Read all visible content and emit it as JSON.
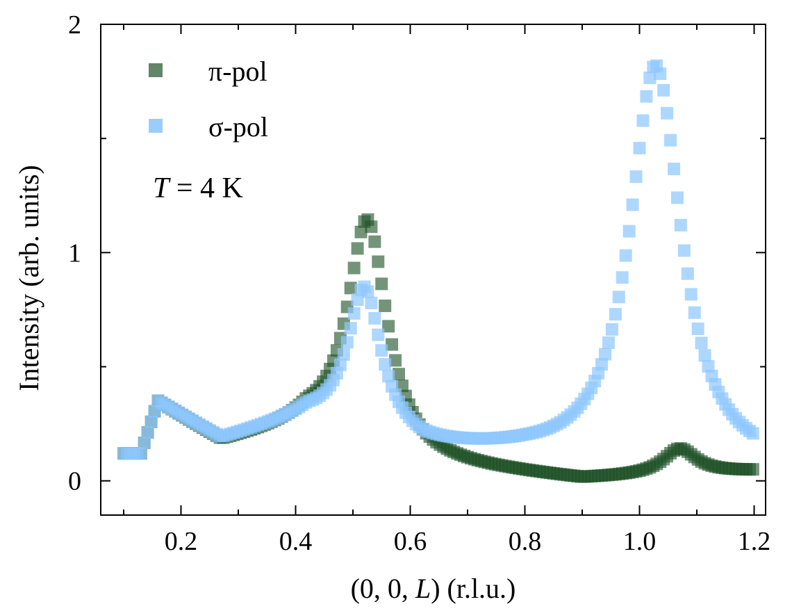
{
  "chart_data": {
    "type": "scatter",
    "xlabel_prefix": "(0, 0, ",
    "xlabel_var": "L",
    "xlabel_suffix": ") (r.l.u.)",
    "ylabel": "Intensity (arb. units)",
    "xlim": [
      0.06,
      1.22
    ],
    "ylim": [
      -0.15,
      2.0
    ],
    "x_ticks": [
      0.2,
      0.4,
      0.6,
      0.8,
      1.0,
      1.2
    ],
    "x_tick_labels": [
      "0.2",
      "0.4",
      "0.6",
      "0.8",
      "1.0",
      "1.2"
    ],
    "x_minor_ticks": [
      0.1,
      0.3,
      0.5,
      0.7,
      0.9,
      1.1
    ],
    "y_ticks": [
      0,
      1,
      2
    ],
    "y_tick_labels": [
      "0",
      "1",
      "2"
    ],
    "y_minor_ticks": [
      0.5,
      1.5
    ],
    "annotation": {
      "var": "T",
      "rest": " = 4 K"
    },
    "legend_position": "top-left",
    "series": [
      {
        "name": "π-pol",
        "color": "#1f5226",
        "opacity": 0.62,
        "peaks": [
          {
            "center": 0.525,
            "amp": 0.97,
            "width": 0.042
          },
          {
            "center": 1.07,
            "amp": 0.11,
            "width": 0.035
          }
        ]
      },
      {
        "name": "σ-pol",
        "color": "#8fc8ff",
        "opacity": 0.72,
        "peaks": [
          {
            "center": 0.52,
            "amp": 0.62,
            "width": 0.036
          },
          {
            "center": 1.028,
            "amp": 1.68,
            "width": 0.055
          }
        ]
      }
    ]
  }
}
